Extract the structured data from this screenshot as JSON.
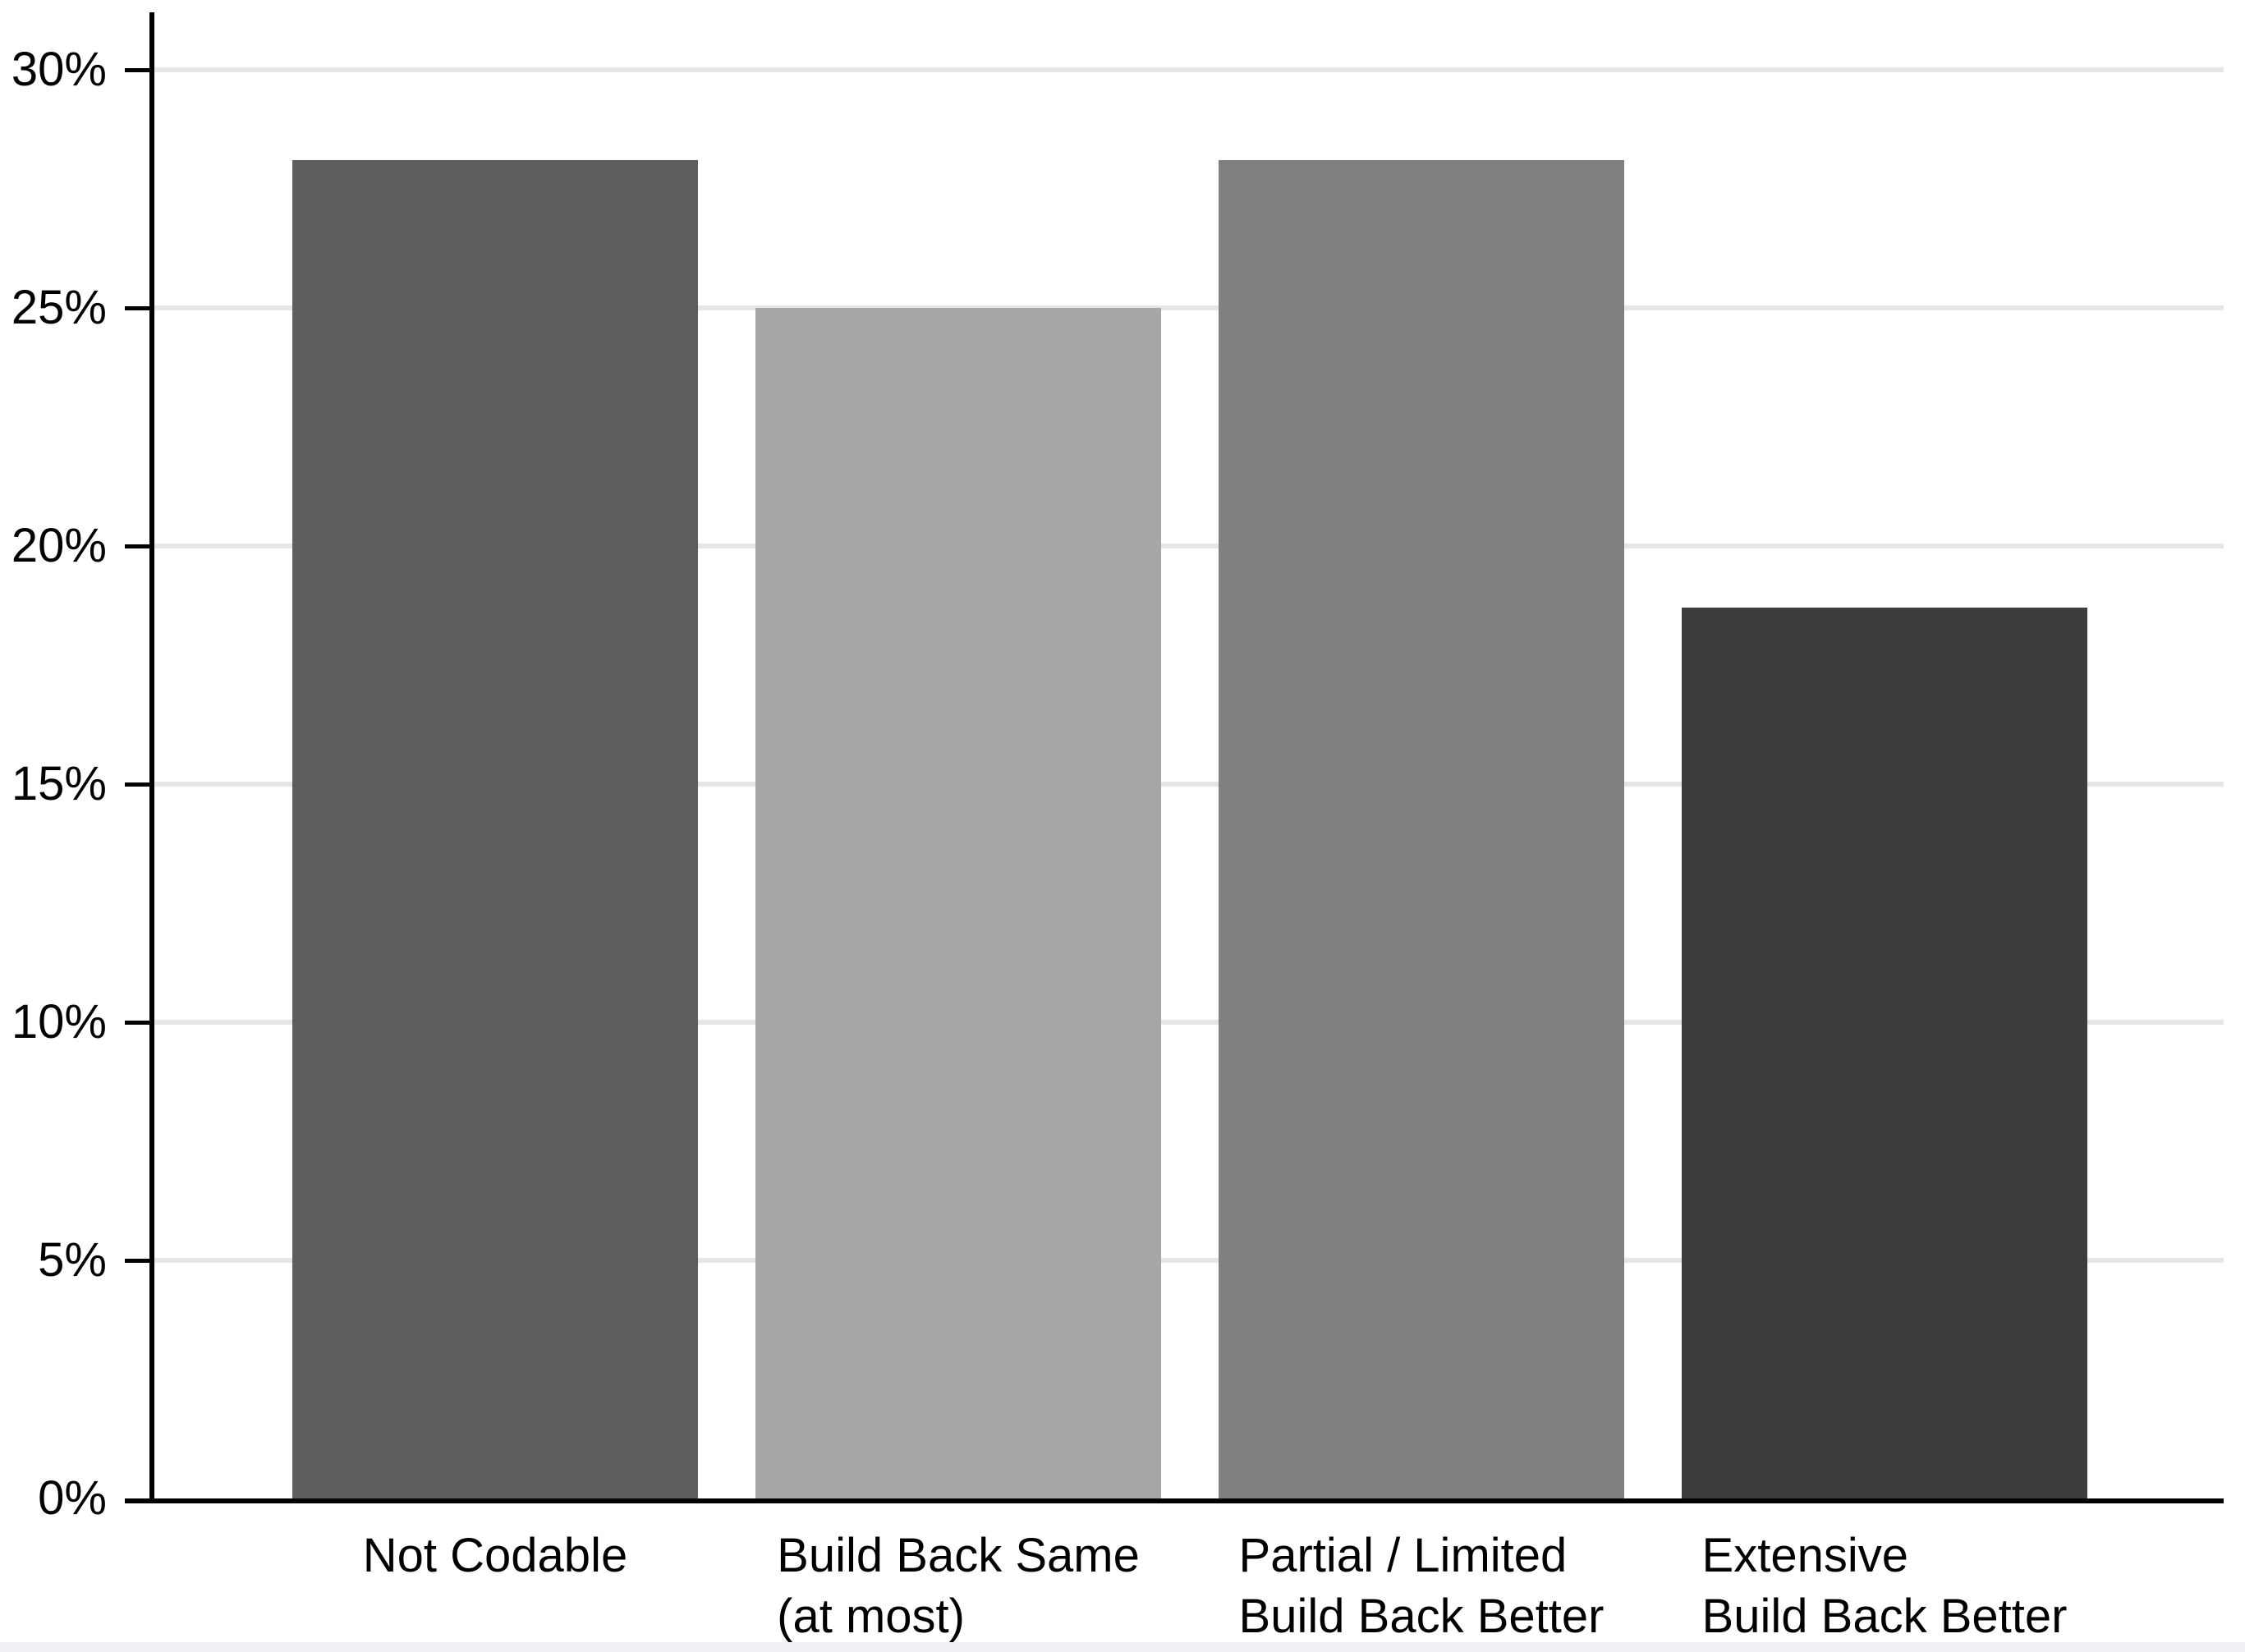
{
  "chart_data": {
    "type": "bar",
    "categories": [
      [
        "Not Codable"
      ],
      [
        "Build Back Same",
        "(at most)"
      ],
      [
        "Partial / Limited",
        "Build Back Better"
      ],
      [
        "Extensive",
        "Build Back Better"
      ]
    ],
    "values": [
      28.1,
      25.0,
      28.1,
      18.7
    ],
    "bar_colors": [
      "#5e5e5e",
      "#a6a6a6",
      "#808080",
      "#3c3c3c"
    ],
    "title": "",
    "xlabel": "",
    "ylabel": "",
    "ylim": [
      0,
      30
    ],
    "ytick_step": 5,
    "ytick_labels": [
      "0%",
      "5%",
      "10%",
      "15%",
      "20%",
      "25%",
      "30%"
    ],
    "grid": "horizontal",
    "legend": "none",
    "gridline_color": "#e6e6e6",
    "axis_color": "#000000",
    "background_color": "#ffffff",
    "bottom_strip_color": "#f0f1f4"
  }
}
